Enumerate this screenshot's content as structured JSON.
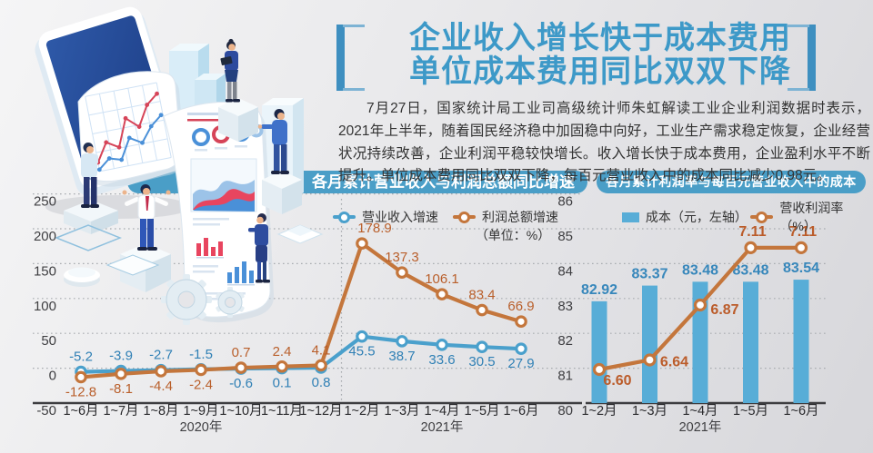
{
  "title": {
    "line1": "企业收入增长快于成本费用",
    "line2": "单位成本费用同比双双下降",
    "color": "#3d99c8"
  },
  "intro": {
    "text": "7月27日，国家统计局工业司高级统计师朱虹解读工业企业利润数据时表示，2021年上半年，随着国民经济稳中加固稳中向好，工业生产需求稳定恢复，企业经营状况持续改善，企业利润平稳较快增长。收入增长快于成本费用，企业盈利水平不断提升。单位成本费用同比双双下降，每百元营业收入中的成本同比减少0.98元。"
  },
  "chart_data": [
    {
      "type": "line",
      "title": "各月累计营业收入与利润总额同比增速",
      "unit_note": "（单位：%）",
      "categories": [
        "1~6月",
        "1~7月",
        "1~8月",
        "1~9月",
        "1~10月",
        "1~11月",
        "1~12月",
        "1~2月",
        "1~3月",
        "1~4月",
        "1~5月",
        "1~6月"
      ],
      "group_labels": [
        {
          "label": "2020年",
          "index": 3
        },
        {
          "label": "2021年",
          "index": 9
        }
      ],
      "series": [
        {
          "name": "营业收入增速",
          "color": "#4aa0cc",
          "label_color": "#3080b5",
          "values": [
            -5.2,
            -3.9,
            -2.7,
            -1.5,
            -0.6,
            0.1,
            0.8,
            45.5,
            38.7,
            33.6,
            30.5,
            27.9
          ],
          "labels": [
            "-5.2",
            "-3.9",
            "-2.7",
            "-1.5",
            "-0.6",
            "0.1",
            "0.8",
            "45.5",
            "38.7",
            "33.6",
            "30.5",
            "27.9"
          ]
        },
        {
          "name": "利润总额增速",
          "color": "#c4763c",
          "label_color": "#b95f2b",
          "values": [
            -12.8,
            -8.1,
            -4.4,
            -2.4,
            0.7,
            2.4,
            4.1,
            178.9,
            137.3,
            106.1,
            83.4,
            66.9
          ],
          "labels": [
            "-12.8",
            "-8.1",
            "-4.4",
            "-2.4",
            "0.7",
            "2.4",
            "4.1",
            "178.9",
            "137.3",
            "106.1",
            "83.4",
            "66.9"
          ]
        }
      ],
      "ylim": [
        -50,
        250
      ],
      "yticks": [
        250,
        200,
        150,
        100,
        50,
        0,
        -50
      ],
      "grid": "dotted",
      "legend_position": "top"
    },
    {
      "type": "bar+line",
      "title": "各月累计利润率与每百元营业收入中的成本",
      "categories": [
        "1~2月",
        "1~3月",
        "1~4月",
        "1~5月",
        "1~6月"
      ],
      "group_labels": [
        {
          "label": "2021年",
          "index": 2
        }
      ],
      "bar_series": {
        "name": "成本（元，左轴）",
        "color": "#58add7",
        "label_color": "#3787bb",
        "values": [
          82.92,
          83.37,
          83.48,
          83.48,
          83.54
        ],
        "labels": [
          "82.92",
          "83.37",
          "83.48",
          "83.48",
          "83.54"
        ]
      },
      "line_series": {
        "name": "营收利润率（%）",
        "color": "#c4763c",
        "label_color": "#bb5c2a",
        "values": [
          6.6,
          6.64,
          6.87,
          7.11,
          7.11
        ],
        "labels": [
          "6.60",
          "6.64",
          "6.87",
          "7.11",
          "7.11"
        ]
      },
      "left_axis": {
        "min": 80,
        "max": 86,
        "ticks": [
          86,
          85,
          84,
          83,
          82,
          81,
          80
        ]
      },
      "grid": "dotted",
      "legend_position": "top"
    }
  ]
}
